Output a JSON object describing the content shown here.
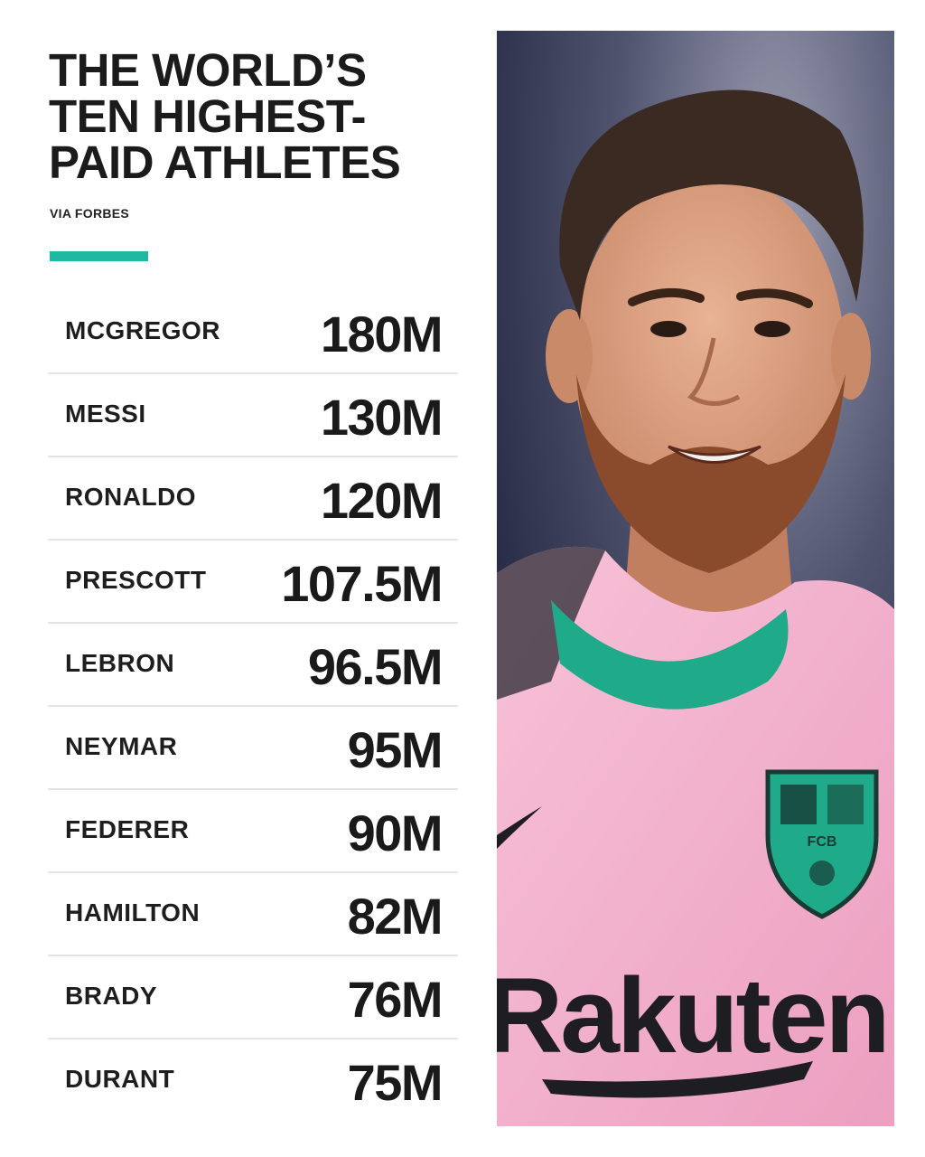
{
  "header": {
    "title_lines": [
      "THE WORLD’S",
      "TEN HIGHEST-",
      "PAID ATHLETES"
    ],
    "source": "VIA FORBES",
    "accent_color": "#1fb8a3"
  },
  "rankings": [
    {
      "name": "MCGREGOR",
      "earnings": "180M"
    },
    {
      "name": "MESSI",
      "earnings": "130M"
    },
    {
      "name": "RONALDO",
      "earnings": "120M"
    },
    {
      "name": "PRESCOTT",
      "earnings": "107.5M"
    },
    {
      "name": "LEBRON",
      "earnings": "96.5M"
    },
    {
      "name": "NEYMAR",
      "earnings": "95M"
    },
    {
      "name": "FEDERER",
      "earnings": "90M"
    },
    {
      "name": "HAMILTON",
      "earnings": "82M"
    },
    {
      "name": "BRADY",
      "earnings": "76M"
    },
    {
      "name": "DURANT",
      "earnings": "75M"
    }
  ],
  "photo": {
    "subject": "athlete-portrait",
    "jersey_color": "#f4b4cf",
    "collar_color": "#1faa8a",
    "sponsor_text": "Rakuten",
    "crest_text": "FCB"
  }
}
